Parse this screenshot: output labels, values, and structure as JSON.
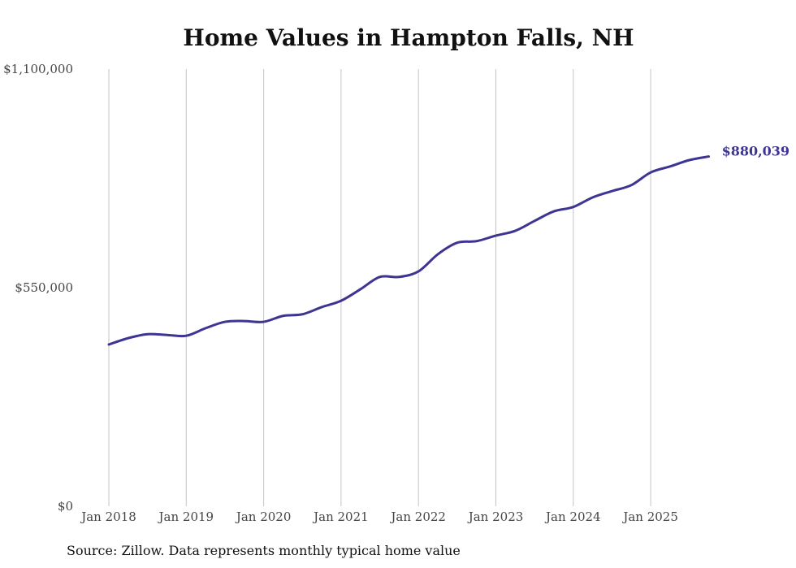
{
  "chart_data": {
    "type": "line",
    "title": "Home Values in Hampton Falls, NH",
    "source": "Source: Zillow. Data represents monthly typical home value",
    "xlabel": "",
    "ylabel": "",
    "ylim": [
      0,
      1100000
    ],
    "y_ticks": [
      0,
      550000,
      1100000
    ],
    "y_tick_labels": [
      "$0",
      "$550,000",
      "$1,100,000"
    ],
    "x_tick_labels": [
      "Jan 2018",
      "Jan 2019",
      "Jan 2020",
      "Jan 2021",
      "Jan 2022",
      "Jan 2023",
      "Jan 2024",
      "Jan 2025"
    ],
    "x_range_years": [
      2018,
      2025.75
    ],
    "grid": "vertical",
    "line_color": "#3d3591",
    "end_label": "$880,039",
    "series": [
      {
        "name": "Typical home value",
        "x": [
          2018,
          2018.25,
          2018.5,
          2018.75,
          2019,
          2019.25,
          2019.5,
          2019.75,
          2020,
          2020.25,
          2020.5,
          2020.75,
          2021,
          2021.25,
          2021.5,
          2021.75,
          2022,
          2022.25,
          2022.5,
          2022.75,
          2023,
          2023.25,
          2023.5,
          2023.75,
          2024,
          2024.25,
          2024.5,
          2024.75,
          2025,
          2025.25,
          2025.5,
          2025.75
        ],
        "values": [
          407000,
          423000,
          433000,
          431000,
          429000,
          448000,
          464000,
          466000,
          464000,
          479000,
          483000,
          501000,
          517000,
          546000,
          577000,
          577000,
          591000,
          634000,
          663000,
          667000,
          681000,
          693000,
          718000,
          742000,
          753000,
          777000,
          793000,
          808000,
          840000,
          855000,
          871000,
          880039
        ]
      }
    ]
  }
}
